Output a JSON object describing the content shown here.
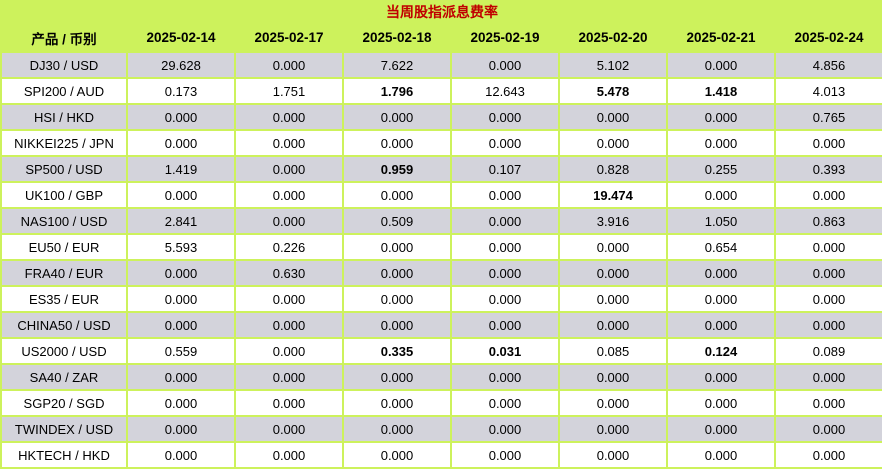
{
  "title": "当周股指派息费率",
  "colors": {
    "header_bg": "#cdf25c",
    "title_text": "#c00000",
    "stripe_gray": "#d3d3db",
    "stripe_white": "#ffffff",
    "grid_line": "#cdf25c",
    "text": "#000000"
  },
  "table": {
    "product_header": "产品 / 币别",
    "date_headers": [
      "2025-02-14",
      "2025-02-17",
      "2025-02-18",
      "2025-02-19",
      "2025-02-20",
      "2025-02-21",
      "2025-02-24"
    ],
    "rows": [
      {
        "product": "DJ30 / USD",
        "values": [
          "29.628",
          "0.000",
          "7.622",
          "0.000",
          "5.102",
          "0.000",
          "4.856"
        ],
        "bold": []
      },
      {
        "product": "SPI200 / AUD",
        "values": [
          "0.173",
          "1.751",
          "1.796",
          "12.643",
          "5.478",
          "1.418",
          "4.013"
        ],
        "bold": [
          2,
          4,
          5
        ]
      },
      {
        "product": "HSI / HKD",
        "values": [
          "0.000",
          "0.000",
          "0.000",
          "0.000",
          "0.000",
          "0.000",
          "0.765"
        ],
        "bold": []
      },
      {
        "product": "NIKKEI225 / JPN",
        "values": [
          "0.000",
          "0.000",
          "0.000",
          "0.000",
          "0.000",
          "0.000",
          "0.000"
        ],
        "bold": []
      },
      {
        "product": "SP500 / USD",
        "values": [
          "1.419",
          "0.000",
          "0.959",
          "0.107",
          "0.828",
          "0.255",
          "0.393"
        ],
        "bold": [
          2
        ]
      },
      {
        "product": "UK100 / GBP",
        "values": [
          "0.000",
          "0.000",
          "0.000",
          "0.000",
          "19.474",
          "0.000",
          "0.000"
        ],
        "bold": [
          4
        ]
      },
      {
        "product": "NAS100 / USD",
        "values": [
          "2.841",
          "0.000",
          "0.509",
          "0.000",
          "3.916",
          "1.050",
          "0.863"
        ],
        "bold": []
      },
      {
        "product": "EU50 / EUR",
        "values": [
          "5.593",
          "0.226",
          "0.000",
          "0.000",
          "0.000",
          "0.654",
          "0.000"
        ],
        "bold": []
      },
      {
        "product": "FRA40 / EUR",
        "values": [
          "0.000",
          "0.630",
          "0.000",
          "0.000",
          "0.000",
          "0.000",
          "0.000"
        ],
        "bold": []
      },
      {
        "product": "ES35 / EUR",
        "values": [
          "0.000",
          "0.000",
          "0.000",
          "0.000",
          "0.000",
          "0.000",
          "0.000"
        ],
        "bold": []
      },
      {
        "product": "CHINA50 / USD",
        "values": [
          "0.000",
          "0.000",
          "0.000",
          "0.000",
          "0.000",
          "0.000",
          "0.000"
        ],
        "bold": []
      },
      {
        "product": "US2000 / USD",
        "values": [
          "0.559",
          "0.000",
          "0.335",
          "0.031",
          "0.085",
          "0.124",
          "0.089"
        ],
        "bold": [
          2,
          3,
          5
        ]
      },
      {
        "product": "SA40 / ZAR",
        "values": [
          "0.000",
          "0.000",
          "0.000",
          "0.000",
          "0.000",
          "0.000",
          "0.000"
        ],
        "bold": []
      },
      {
        "product": "SGP20 / SGD",
        "values": [
          "0.000",
          "0.000",
          "0.000",
          "0.000",
          "0.000",
          "0.000",
          "0.000"
        ],
        "bold": []
      },
      {
        "product": "TWINDEX / USD",
        "values": [
          "0.000",
          "0.000",
          "0.000",
          "0.000",
          "0.000",
          "0.000",
          "0.000"
        ],
        "bold": []
      },
      {
        "product": "HKTECH / HKD",
        "values": [
          "0.000",
          "0.000",
          "0.000",
          "0.000",
          "0.000",
          "0.000",
          "0.000"
        ],
        "bold": []
      }
    ]
  }
}
